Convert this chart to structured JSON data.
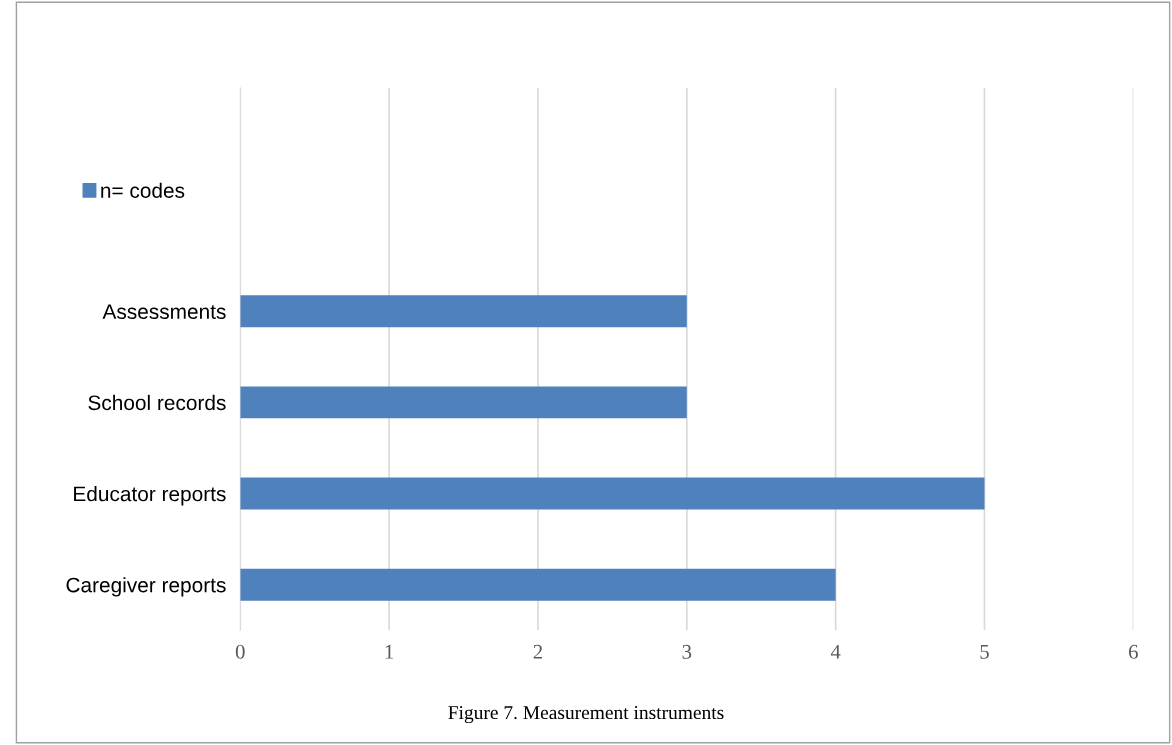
{
  "chart_data": {
    "type": "bar",
    "orientation": "horizontal",
    "title": "Figure 7. Measurement instruments",
    "categories": [
      "Assessments",
      "School records",
      "Educator reports",
      "Caregiver reports"
    ],
    "series": [
      {
        "name": "n= codes",
        "color": "#4f81bd",
        "values": [
          3,
          3,
          5,
          4
        ]
      }
    ],
    "xlim": [
      0,
      6
    ],
    "xticks": [
      0,
      1,
      2,
      3,
      4,
      5,
      6
    ],
    "grid": "x",
    "legend": "top left"
  }
}
